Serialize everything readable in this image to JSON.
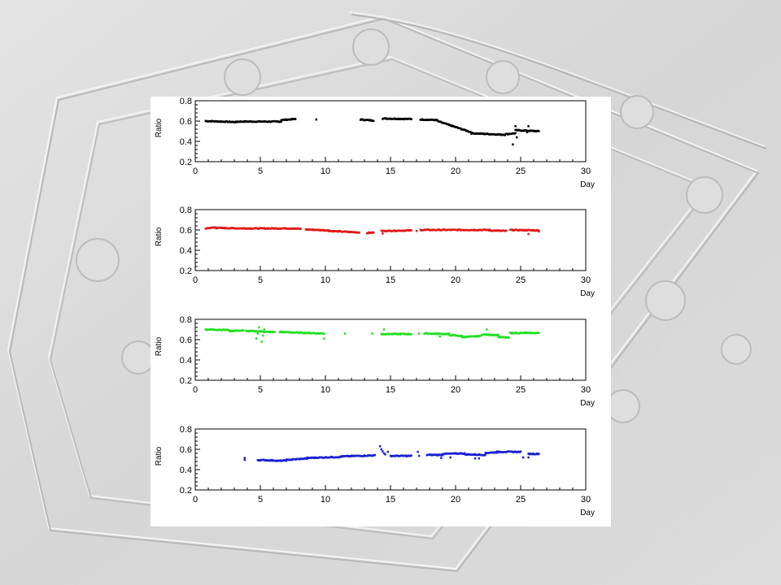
{
  "colors": {
    "background": "#d9d9d9",
    "panel": "#ffffff"
  },
  "chart_data": [
    {
      "type": "scatter",
      "color": "#000000",
      "xlabel": "Day",
      "ylabel": "Ratio",
      "xlim": [
        0,
        30
      ],
      "ylim": [
        0.2,
        0.8
      ],
      "xticks": [
        "0",
        "5",
        "10",
        "15",
        "20",
        "25",
        "30"
      ],
      "yticks": [
        "0.2",
        "0.4",
        "0.6",
        "0.8"
      ],
      "grid": false,
      "segments": [
        [
          0.8,
          3.2,
          0.6,
          0.59
        ],
        [
          3.2,
          6.6,
          0.595,
          0.595
        ],
        [
          6.6,
          7.7,
          0.61,
          0.62
        ],
        [
          12.7,
          13.7,
          0.615,
          0.605
        ],
        [
          14.4,
          16.6,
          0.625,
          0.62
        ],
        [
          17.3,
          18.6,
          0.615,
          0.61
        ],
        [
          18.6,
          21.2,
          0.6,
          0.49
        ],
        [
          21.2,
          23.8,
          0.48,
          0.465
        ],
        [
          23.8,
          24.6,
          0.47,
          0.48
        ],
        [
          24.6,
          26.4,
          0.51,
          0.5
        ]
      ],
      "points": [
        [
          9.3,
          0.615
        ],
        [
          24.4,
          0.37
        ],
        [
          24.6,
          0.55
        ],
        [
          25.6,
          0.55
        ],
        [
          24.7,
          0.44
        ],
        [
          25.5,
          0.49
        ]
      ]
    },
    {
      "type": "scatter",
      "color": "#e01818",
      "xlabel": "Day",
      "ylabel": "Ratio",
      "xlim": [
        0,
        30
      ],
      "ylim": [
        0.2,
        0.8
      ],
      "xticks": [
        "0",
        "5",
        "10",
        "15",
        "20",
        "25",
        "30"
      ],
      "yticks": [
        "0.2",
        "0.4",
        "0.6",
        "0.8"
      ],
      "grid": false,
      "segments": [
        [
          0.8,
          1.6,
          0.615,
          0.625
        ],
        [
          1.6,
          3.8,
          0.62,
          0.615
        ],
        [
          3.8,
          7.4,
          0.615,
          0.615
        ],
        [
          7.4,
          8.1,
          0.615,
          0.61
        ],
        [
          8.5,
          10.3,
          0.605,
          0.595
        ],
        [
          10.3,
          12.6,
          0.59,
          0.575
        ],
        [
          13.2,
          13.7,
          0.57,
          0.575
        ],
        [
          14.3,
          16.6,
          0.59,
          0.595
        ],
        [
          17.3,
          22.6,
          0.6,
          0.6
        ],
        [
          22.6,
          23.9,
          0.595,
          0.59
        ],
        [
          24.2,
          26.4,
          0.6,
          0.595
        ]
      ],
      "points": [
        [
          14.4,
          0.565
        ],
        [
          17.0,
          0.59
        ],
        [
          25.6,
          0.56
        ],
        [
          26.4,
          0.585
        ]
      ]
    },
    {
      "type": "scatter",
      "color": "#22e022",
      "xlabel": "Day",
      "ylabel": "Ratio",
      "xlim": [
        0,
        30
      ],
      "ylim": [
        0.2,
        0.8
      ],
      "xticks": [
        "0",
        "5",
        "10",
        "15",
        "20",
        "25",
        "30"
      ],
      "yticks": [
        "0.2",
        "0.4",
        "0.6",
        "0.8"
      ],
      "grid": false,
      "segments": [
        [
          0.8,
          2.6,
          0.7,
          0.695
        ],
        [
          2.6,
          3.7,
          0.685,
          0.69
        ],
        [
          3.9,
          5.3,
          0.685,
          0.68
        ],
        [
          5.3,
          6.1,
          0.675,
          0.675
        ],
        [
          6.5,
          9.9,
          0.675,
          0.66
        ],
        [
          14.3,
          16.6,
          0.655,
          0.655
        ],
        [
          17.6,
          19.5,
          0.66,
          0.655
        ],
        [
          19.5,
          20.5,
          0.645,
          0.635
        ],
        [
          20.5,
          21.9,
          0.625,
          0.635
        ],
        [
          22.0,
          23.3,
          0.65,
          0.645
        ],
        [
          23.3,
          24.1,
          0.625,
          0.62
        ],
        [
          24.2,
          26.4,
          0.665,
          0.665
        ]
      ],
      "points": [
        [
          4.7,
          0.61
        ],
        [
          4.9,
          0.72
        ],
        [
          5.1,
          0.58
        ],
        [
          5.2,
          0.64
        ],
        [
          4.8,
          0.66
        ],
        [
          5.3,
          0.7
        ],
        [
          6.6,
          0.68
        ],
        [
          9.9,
          0.61
        ],
        [
          11.5,
          0.66
        ],
        [
          13.6,
          0.66
        ],
        [
          14.5,
          0.7
        ],
        [
          17.2,
          0.66
        ],
        [
          18.8,
          0.63
        ],
        [
          22.4,
          0.7
        ],
        [
          24.3,
          0.66
        ],
        [
          25.4,
          0.67
        ]
      ]
    },
    {
      "type": "scatter",
      "color": "#1a22d0",
      "xlabel": "Day",
      "ylabel": "Ratio",
      "xlim": [
        0,
        30
      ],
      "ylim": [
        0.2,
        0.8
      ],
      "xticks": [
        "0",
        "5",
        "10",
        "15",
        "20",
        "25",
        "30"
      ],
      "yticks": [
        "0.2",
        "0.4",
        "0.6",
        "0.8"
      ],
      "grid": false,
      "segments": [
        [
          4.8,
          6.2,
          0.495,
          0.49
        ],
        [
          6.2,
          7.0,
          0.485,
          0.49
        ],
        [
          7.0,
          8.6,
          0.495,
          0.51
        ],
        [
          8.6,
          11.2,
          0.515,
          0.525
        ],
        [
          11.2,
          13.8,
          0.53,
          0.54
        ],
        [
          15.0,
          16.6,
          0.535,
          0.535
        ],
        [
          17.8,
          19.0,
          0.545,
          0.545
        ],
        [
          19.0,
          20.7,
          0.555,
          0.56
        ],
        [
          20.7,
          22.3,
          0.55,
          0.545
        ],
        [
          22.3,
          23.2,
          0.565,
          0.57
        ],
        [
          23.2,
          25.0,
          0.575,
          0.575
        ],
        [
          25.6,
          26.4,
          0.555,
          0.555
        ]
      ],
      "points": [
        [
          3.8,
          0.515
        ],
        [
          3.8,
          0.495
        ],
        [
          14.2,
          0.63
        ],
        [
          14.3,
          0.6
        ],
        [
          14.4,
          0.58
        ],
        [
          14.5,
          0.56
        ],
        [
          14.6,
          0.55
        ],
        [
          14.8,
          0.575
        ],
        [
          17.1,
          0.575
        ],
        [
          17.2,
          0.535
        ],
        [
          18.9,
          0.515
        ],
        [
          19.6,
          0.52
        ],
        [
          21.5,
          0.51
        ],
        [
          21.8,
          0.51
        ],
        [
          25.2,
          0.52
        ],
        [
          25.6,
          0.52
        ]
      ]
    }
  ]
}
